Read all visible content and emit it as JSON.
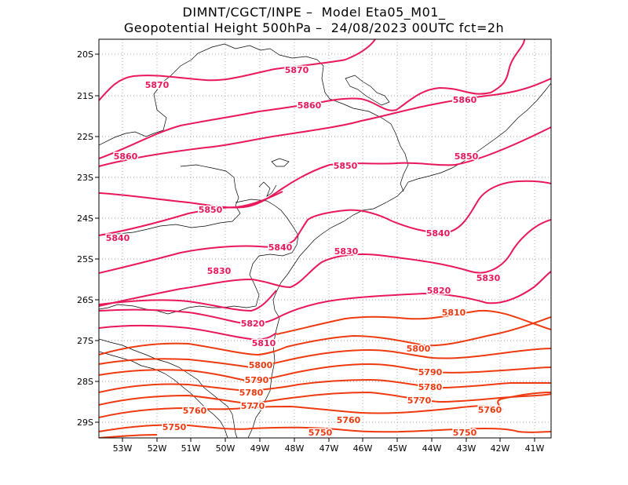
{
  "header": {
    "line1": "DIMNT/CGCT/INPE –  Model Eta05_M01_",
    "line2": "Geopotential Height 500hPa –  24/08/2023 00UTC fct=2h"
  },
  "map": {
    "lon_ticks": [
      "53W",
      "52W",
      "51W",
      "50W",
      "49W",
      "48W",
      "47W",
      "46W",
      "45W",
      "44W",
      "43W",
      "42W",
      "41W"
    ],
    "lat_ticks": [
      "20S",
      "21S",
      "22S",
      "23S",
      "24S",
      "25S",
      "26S",
      "27S",
      "28S",
      "29S"
    ],
    "colors": {
      "high": "#e8185a",
      "low": "#ee3a10",
      "coast": "#000000",
      "grid": "#aaaaaa"
    }
  },
  "contour_labels": [
    "5870",
    "5870",
    "5860",
    "5860",
    "5860",
    "5850",
    "5850",
    "5850",
    "5840",
    "5840",
    "5840",
    "5830",
    "5830",
    "5830",
    "5820",
    "5820",
    "5810",
    "5810",
    "5800",
    "5800",
    "5790",
    "5790",
    "5780",
    "5780",
    "5770",
    "5770",
    "5760",
    "5760",
    "5760",
    "5750",
    "5750",
    "5750"
  ]
}
